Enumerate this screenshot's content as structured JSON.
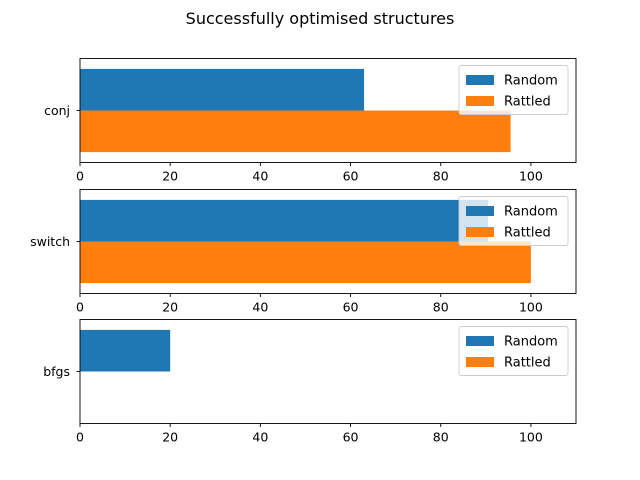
{
  "figure": {
    "title": "Successfully optimised structures"
  },
  "chart_data": [
    {
      "type": "bar",
      "orientation": "horizontal",
      "categories": [
        "conj"
      ],
      "series": [
        {
          "name": "Random",
          "values": [
            63
          ],
          "color": "#1f77b4"
        },
        {
          "name": "Rattled",
          "values": [
            95.5
          ],
          "color": "#ff7f0e"
        }
      ],
      "xlim": [
        0,
        110
      ],
      "xticks": [
        0,
        20,
        40,
        60,
        80,
        100
      ],
      "legend_position": "upper-right",
      "grid": false
    },
    {
      "type": "bar",
      "orientation": "horizontal",
      "categories": [
        "switch"
      ],
      "series": [
        {
          "name": "Random",
          "values": [
            90.5
          ],
          "color": "#1f77b4"
        },
        {
          "name": "Rattled",
          "values": [
            100
          ],
          "color": "#ff7f0e"
        }
      ],
      "xlim": [
        0,
        110
      ],
      "xticks": [
        0,
        20,
        40,
        60,
        80,
        100
      ],
      "legend_position": "upper-right",
      "grid": false
    },
    {
      "type": "bar",
      "orientation": "horizontal",
      "categories": [
        "bfgs"
      ],
      "series": [
        {
          "name": "Random",
          "values": [
            20
          ],
          "color": "#1f77b4"
        },
        {
          "name": "Rattled",
          "values": [
            0
          ],
          "color": "#ff7f0e"
        }
      ],
      "xlim": [
        0,
        110
      ],
      "xticks": [
        0,
        20,
        40,
        60,
        80,
        100
      ],
      "legend_position": "upper-right",
      "grid": false
    }
  ]
}
